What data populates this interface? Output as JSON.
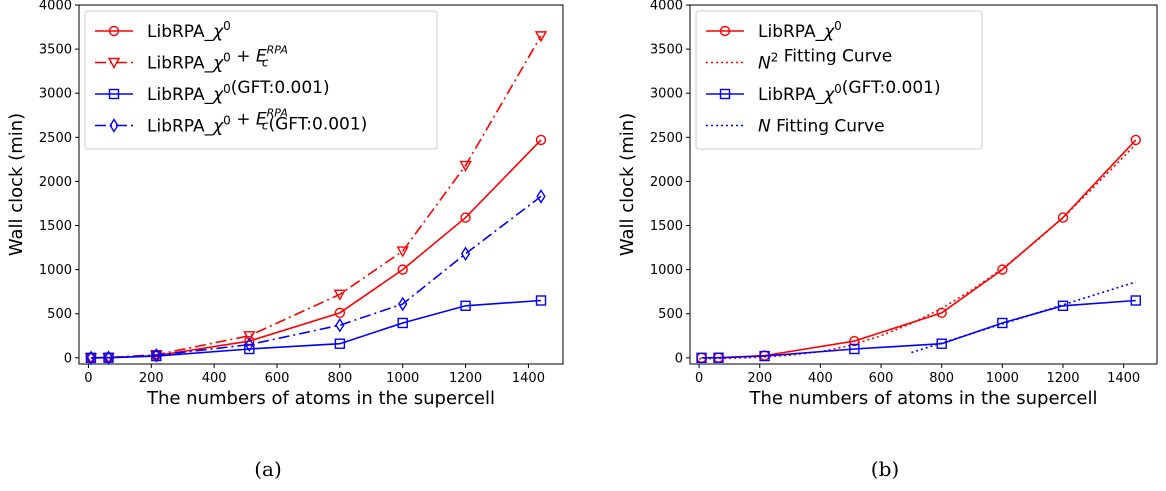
{
  "chart_data": [
    {
      "type": "line",
      "caption": "(a)",
      "xlabel": "The numbers of atoms in the supercell",
      "ylabel": "Wall clock (min)",
      "xticks": [
        0,
        200,
        400,
        600,
        800,
        1000,
        1200,
        1400
      ],
      "yticks": [
        0,
        500,
        1000,
        1500,
        2000,
        2500,
        3000,
        3500,
        4000
      ],
      "xlim": [
        -30,
        1510
      ],
      "ylim": [
        -70,
        4000
      ],
      "legend_position": "top-left",
      "series": [
        {
          "name": "LibRPA_χ⁰",
          "color": "#ff0000",
          "linestyle": "solid",
          "marker": "circle",
          "x": [
            8,
            64,
            216,
            512,
            800,
            1000,
            1200,
            1440
          ],
          "y": [
            0,
            2,
            25,
            190,
            510,
            1000,
            1590,
            2470
          ]
        },
        {
          "name": "LibRPA_χ⁰ + E_c^RPA",
          "color": "#ff0000",
          "linestyle": "dashdot",
          "marker": "triangle-down",
          "x": [
            8,
            64,
            216,
            512,
            800,
            1000,
            1200,
            1440
          ],
          "y": [
            0,
            3,
            35,
            250,
            720,
            1210,
            2180,
            3650
          ]
        },
        {
          "name": "LibRPA_χ⁰(GFT:0.001)",
          "color": "#0000ff",
          "linestyle": "solid",
          "marker": "square",
          "x": [
            8,
            64,
            216,
            512,
            800,
            1000,
            1200,
            1440
          ],
          "y": [
            0,
            1,
            20,
            100,
            160,
            395,
            590,
            650
          ]
        },
        {
          "name": "LibRPA_χ⁰ + E_c^RPA(GFT:0.001)",
          "color": "#0000ff",
          "linestyle": "dashdot",
          "marker": "diamond",
          "x": [
            8,
            64,
            216,
            512,
            800,
            1000,
            1200,
            1440
          ],
          "y": [
            0,
            2,
            28,
            150,
            370,
            610,
            1180,
            1830
          ]
        }
      ]
    },
    {
      "type": "line",
      "caption": "(b)",
      "xlabel": "The numbers of atoms in the supercell",
      "ylabel": "Wall clock (min)",
      "xticks": [
        0,
        200,
        400,
        600,
        800,
        1000,
        1200,
        1400
      ],
      "yticks": [
        0,
        500,
        1000,
        1500,
        2000,
        2500,
        3000,
        3500,
        4000
      ],
      "xlim": [
        -30,
        1510
      ],
      "ylim": [
        -70,
        4000
      ],
      "legend_position": "top-left",
      "series": [
        {
          "name": "LibRPA_χ⁰",
          "color": "#ff0000",
          "linestyle": "solid",
          "marker": "circle",
          "x": [
            8,
            64,
            216,
            512,
            800,
            1000,
            1200,
            1440
          ],
          "y": [
            0,
            2,
            25,
            190,
            510,
            1000,
            1590,
            2470
          ]
        },
        {
          "name": "N² Fitting Curve",
          "color": "#ff0000",
          "linestyle": "dotted",
          "marker": "none",
          "x": [
            0,
            100,
            200,
            300,
            400,
            500,
            600,
            700,
            800,
            900,
            1000,
            1100,
            1200,
            1300,
            1440
          ],
          "y": [
            -10,
            -5,
            5,
            30,
            70,
            140,
            250,
            390,
            560,
            770,
            1010,
            1290,
            1590,
            1930,
            2420
          ]
        },
        {
          "name": "LibRPA_χ⁰(GFT:0.001)",
          "color": "#0000ff",
          "linestyle": "solid",
          "marker": "square",
          "x": [
            8,
            64,
            216,
            512,
            800,
            1000,
            1200,
            1440
          ],
          "y": [
            0,
            1,
            20,
            100,
            160,
            395,
            590,
            650
          ]
        },
        {
          "name": "N Fitting Curve",
          "color": "#0000ff",
          "linestyle": "dotted",
          "marker": "none",
          "x": [
            700,
            1440
          ],
          "y": [
            60,
            860
          ]
        }
      ]
    }
  ]
}
